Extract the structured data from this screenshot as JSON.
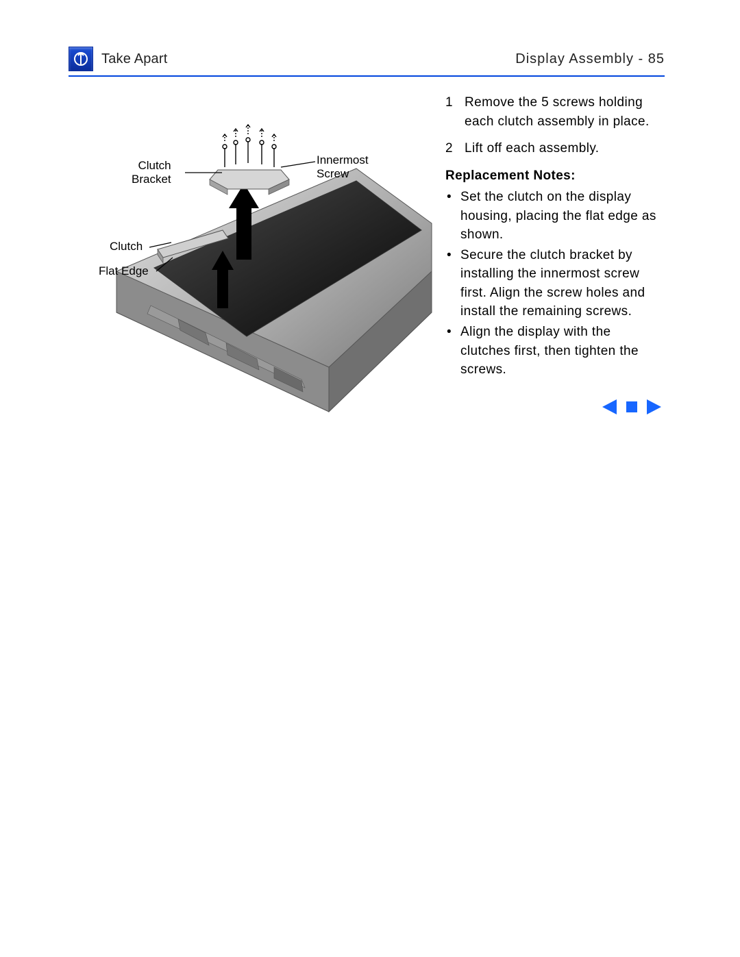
{
  "header": {
    "section_title": "Take Apart",
    "page_title": "Display Assembly",
    "page_separator": " - ",
    "page_number": "85",
    "rule_color": "#0044dd"
  },
  "figure": {
    "labels": {
      "clutch_bracket": "Clutch\nBracket",
      "innermost_screw": "Innermost\nScrew",
      "clutch": "Clutch",
      "flat_edge": "Flat Edge"
    },
    "arrow_color": "#000000",
    "label_fontsize": 17,
    "screen_fill": "#2a2a2a",
    "body_fill_light": "#cfcfcf",
    "body_fill_mid": "#9a9a9a",
    "body_fill_dark": "#6d6d6d",
    "clutch_fill": "#bfbfbf",
    "bracket_fill": "#d0d0d0",
    "screw_stroke": "#000000"
  },
  "steps": [
    {
      "num": "1",
      "text": "Remove the 5 screws holding each clutch assembly in place."
    },
    {
      "num": "2",
      "text": "Lift off each assembly."
    }
  ],
  "notes_heading": "Replacement Notes:",
  "notes": [
    "Set the clutch on the display housing, placing the flat edge as shown.",
    "Secure the clutch bracket by installing the innermost screw first. Align the screw holes and install the remaining screws.",
    "Align the display with the clutches first, then tighten the screws."
  ],
  "nav": {
    "prev_color": "#1766ff",
    "stop_color": "#1766ff",
    "next_color": "#1766ff"
  }
}
